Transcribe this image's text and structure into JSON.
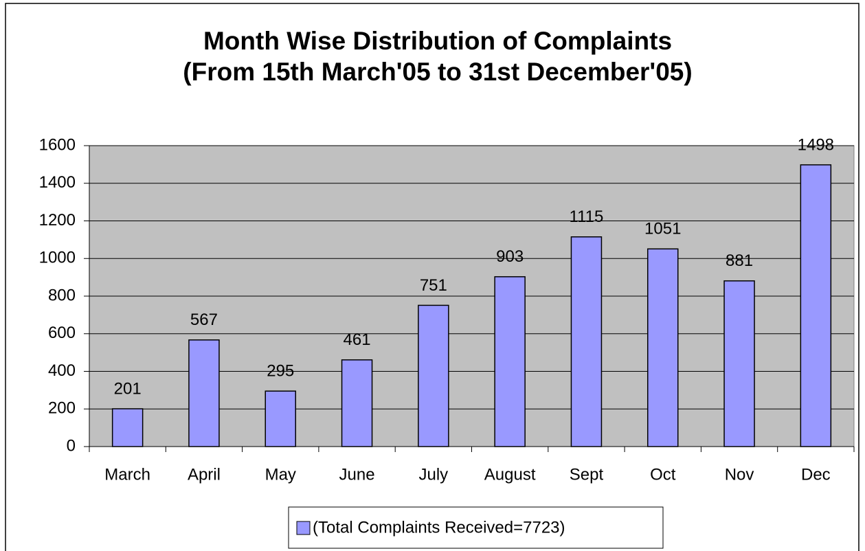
{
  "chart_data": {
    "type": "bar",
    "title": [
      "Month Wise Distribution of Complaints",
      "(From 15th March'05 to 31st December'05)"
    ],
    "categories": [
      "March",
      "April",
      "May",
      "June",
      "July",
      "August",
      "Sept",
      "Oct",
      "Nov",
      "Dec"
    ],
    "series": [
      {
        "name": "(Total Complaints Received=7723)",
        "color": "#9999ff",
        "values": [
          201,
          567,
          295,
          461,
          751,
          903,
          1115,
          1051,
          881,
          1498
        ]
      }
    ],
    "ylim": [
      0,
      1600
    ],
    "yticks": [
      0,
      200,
      400,
      600,
      800,
      1000,
      1200,
      1400,
      1600
    ],
    "grid": true,
    "legend": "bottom"
  }
}
